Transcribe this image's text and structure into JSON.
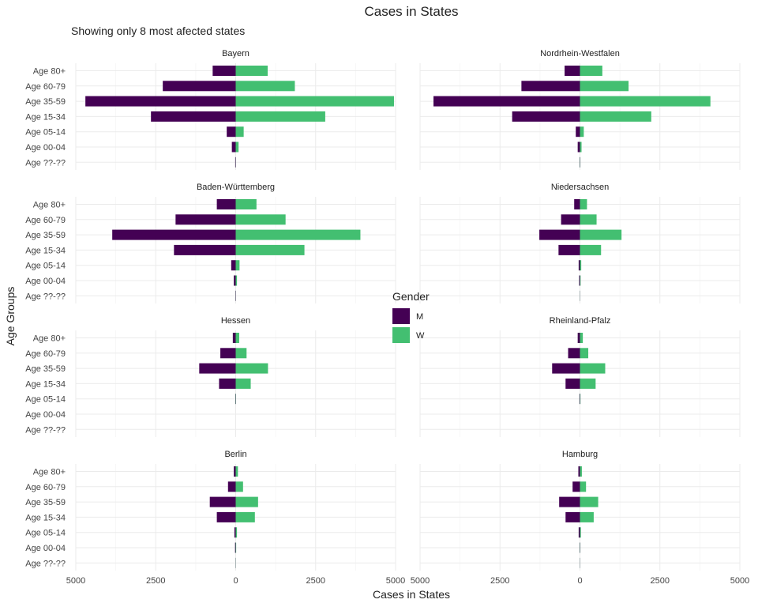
{
  "chart_data": {
    "type": "bar",
    "orientation": "horizontal-diverging",
    "title": "Cases in States",
    "subtitle": "Showing only 8 most afected states",
    "xlabel": "Cases in States",
    "ylabel": "Age Groups",
    "xlim": [
      -5000,
      5000
    ],
    "x_ticks": [
      -5000,
      -2500,
      0,
      2500,
      5000
    ],
    "x_tick_labels": [
      "5000",
      "2500",
      "0",
      "2500",
      "5000"
    ],
    "categories": [
      "Age 80+",
      "Age 60-79",
      "Age 35-59",
      "Age 15-34",
      "Age 05-14",
      "Age 00-04",
      "Age ??-??"
    ],
    "legend": {
      "title": "Gender",
      "position": "center",
      "items": [
        {
          "label": "M",
          "color": "#440154"
        },
        {
          "label": "W",
          "color": "#43bf71"
        }
      ]
    },
    "grid": true,
    "facets": [
      {
        "name": "Bayern",
        "M": [
          720,
          2280,
          4700,
          2650,
          280,
          120,
          15
        ],
        "W": [
          1000,
          1850,
          4950,
          2800,
          250,
          90,
          5
        ]
      },
      {
        "name": "Nordrhein-Westfalen",
        "M": [
          480,
          1830,
          4580,
          2120,
          130,
          70,
          10
        ],
        "W": [
          700,
          1520,
          4080,
          2230,
          120,
          50,
          10
        ]
      },
      {
        "name": "Baden-Württemberg",
        "M": [
          590,
          1880,
          3860,
          1930,
          140,
          60,
          10
        ],
        "W": [
          650,
          1560,
          3900,
          2150,
          120,
          40,
          5
        ]
      },
      {
        "name": "Niedersachsen",
        "M": [
          180,
          590,
          1270,
          670,
          40,
          25,
          5
        ],
        "W": [
          220,
          520,
          1300,
          660,
          40,
          20,
          5
        ]
      },
      {
        "name": "Hessen",
        "M": [
          90,
          480,
          1140,
          520,
          10,
          0,
          0
        ],
        "W": [
          110,
          340,
          1010,
          470,
          10,
          0,
          0
        ]
      },
      {
        "name": "Rheinland-Pfalz",
        "M": [
          70,
          370,
          870,
          450,
          15,
          0,
          0
        ],
        "W": [
          90,
          260,
          790,
          490,
          15,
          0,
          0
        ]
      },
      {
        "name": "Berlin",
        "M": [
          60,
          240,
          810,
          590,
          40,
          20,
          5
        ],
        "W": [
          70,
          230,
          700,
          600,
          40,
          15,
          5
        ]
      },
      {
        "name": "Hamburg",
        "M": [
          50,
          230,
          650,
          450,
          40,
          10,
          5
        ],
        "W": [
          60,
          190,
          570,
          430,
          30,
          10,
          5
        ]
      }
    ]
  }
}
